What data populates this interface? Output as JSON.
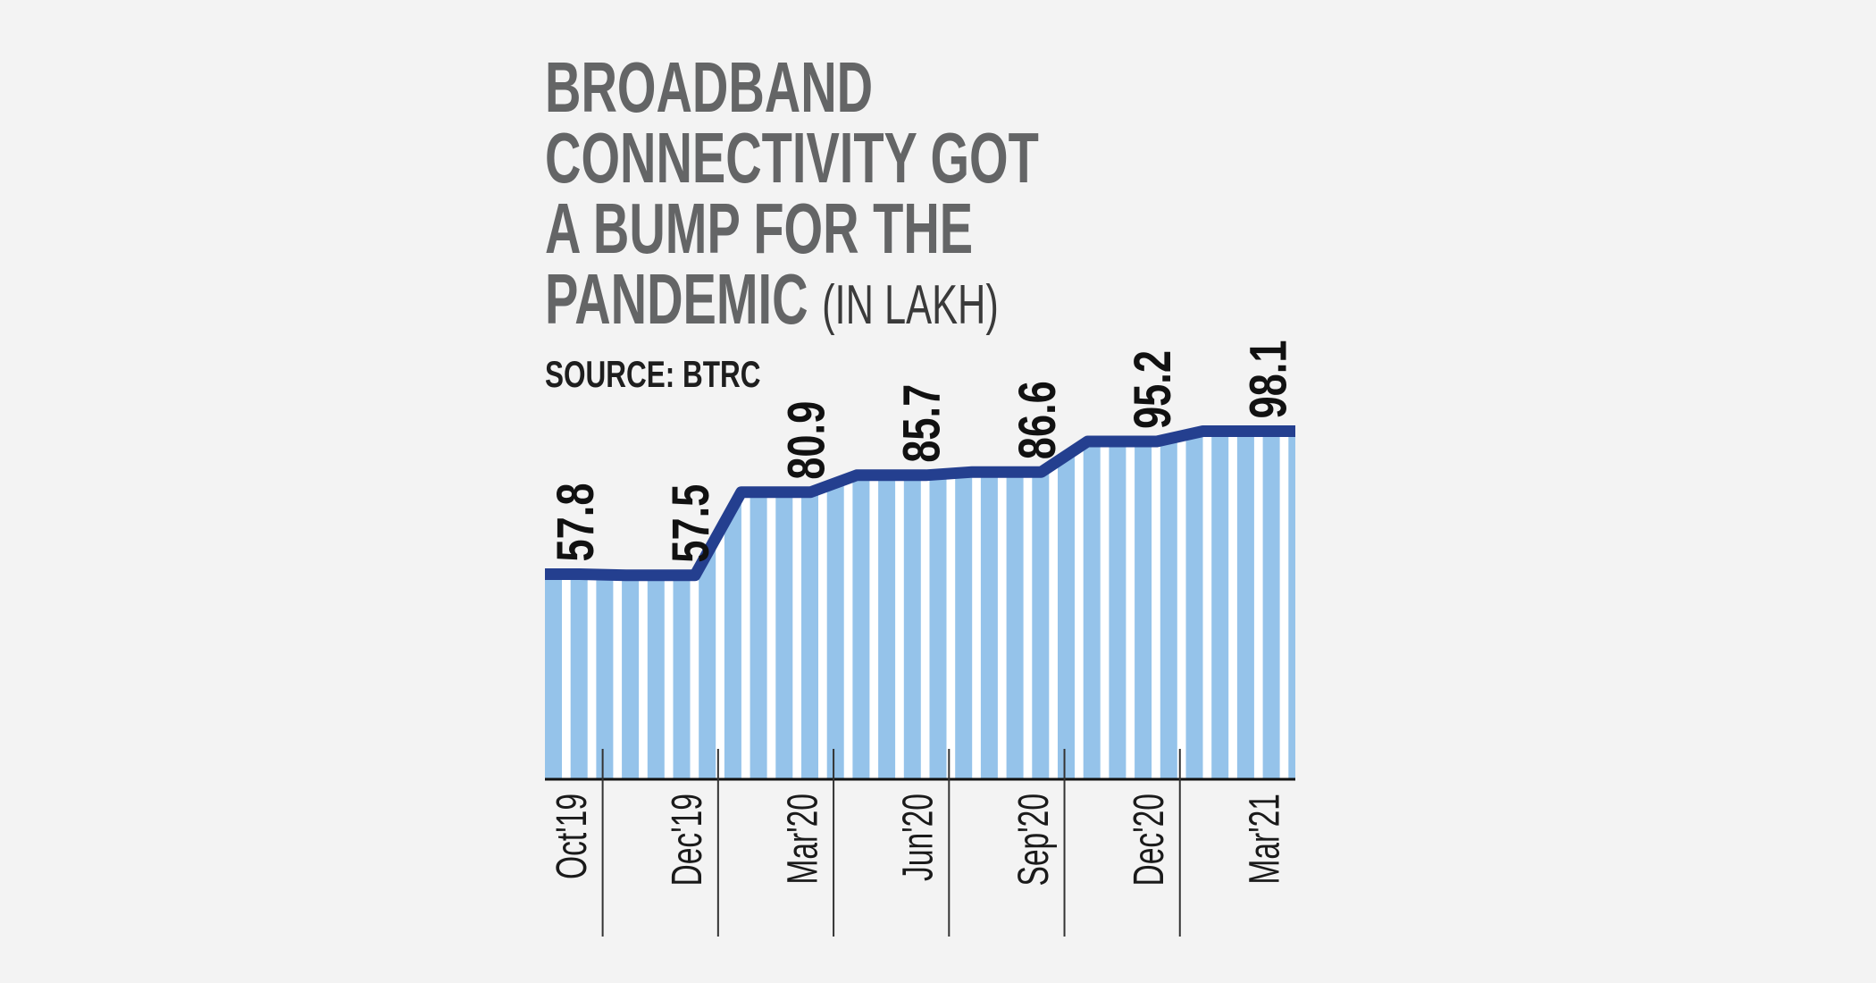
{
  "chart_data": {
    "type": "line",
    "title_lines": [
      "BROADBAND",
      "CONNECTIVITY GOT",
      "A BUMP FOR THE",
      "PANDEMIC"
    ],
    "title_unit": "(IN LAKH)",
    "source": "SOURCE: BTRC",
    "categories": [
      "Oct'19",
      "Dec'19",
      "Mar'20",
      "Jun'20",
      "Sep'20",
      "Dec'20",
      "Mar'21"
    ],
    "values": [
      57.8,
      57.5,
      80.9,
      85.7,
      86.6,
      95.2,
      98.1
    ],
    "value_labels": [
      "57.8",
      "57.5",
      "80.9",
      "85.7",
      "86.6",
      "95.2",
      "98.1"
    ],
    "ylim": [
      0,
      100
    ],
    "xlabel": "",
    "ylabel": "",
    "grid": false,
    "colors": {
      "line": "#243f8f",
      "stripe": "#95c3ea",
      "stripe_gap": "#ffffff",
      "title": "#646566"
    }
  }
}
